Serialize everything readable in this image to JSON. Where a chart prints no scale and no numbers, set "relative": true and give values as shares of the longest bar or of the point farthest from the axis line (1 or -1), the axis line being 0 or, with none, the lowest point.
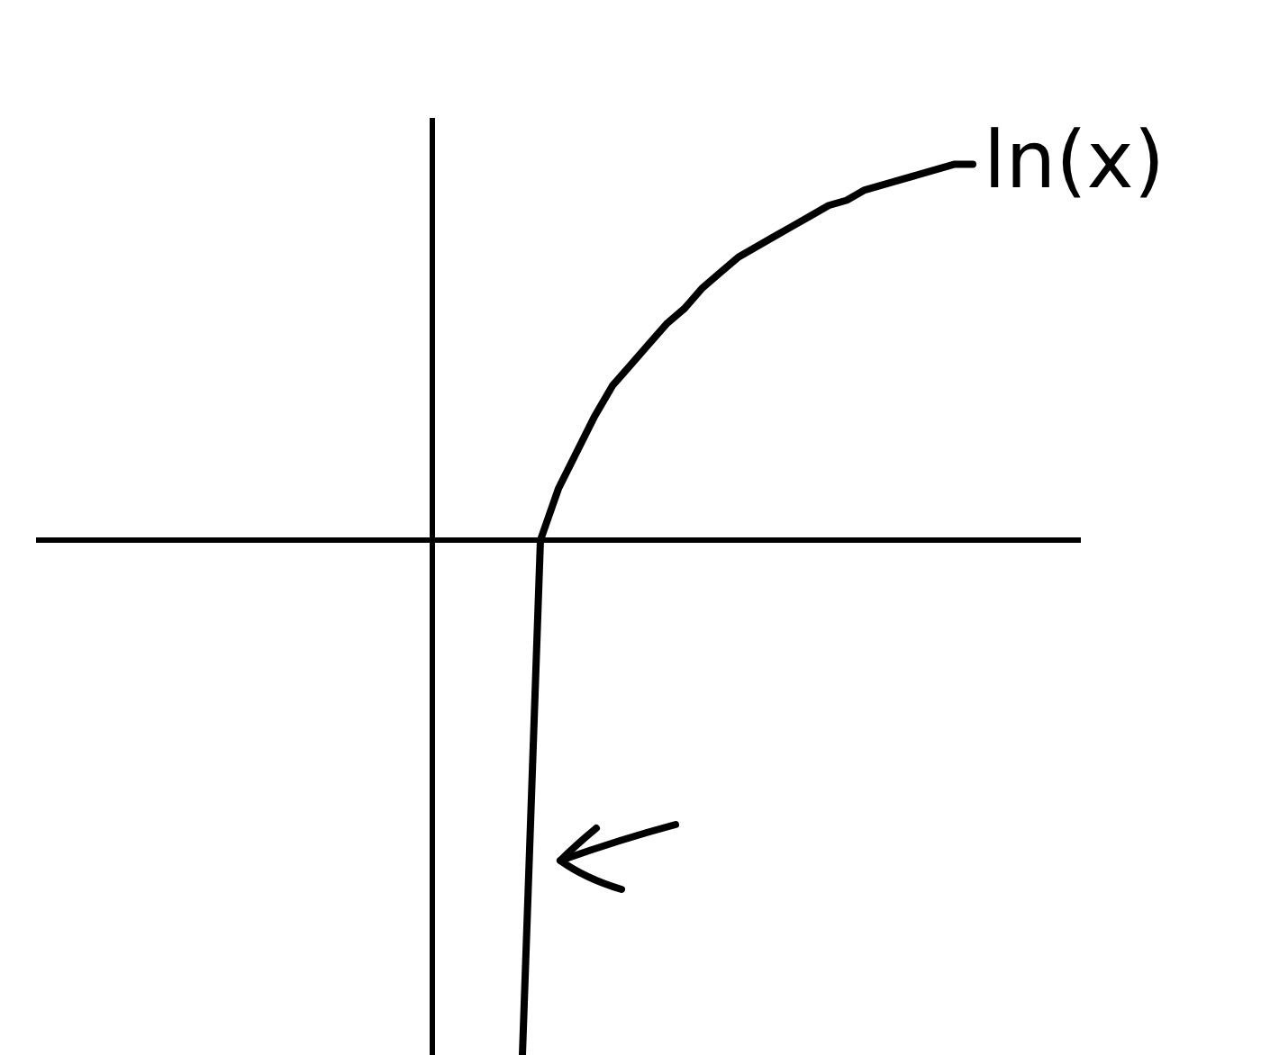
{
  "chart_data": {
    "type": "line",
    "relative": true,
    "categories": [
      null,
      null,
      null,
      null,
      null,
      null,
      null,
      null,
      null,
      null,
      null,
      null,
      null,
      null,
      null,
      null,
      null,
      null,
      null,
      null,
      null,
      null,
      null,
      null,
      null,
      null
    ],
    "series": [
      {
        "name": "ln(x)",
        "color": "#000000",
        "values": [
          -1,
          0.0,
          0.1,
          0.17,
          0.24,
          0.3,
          0.34,
          0.38,
          0.42,
          0.45,
          0.49,
          0.52,
          0.55,
          0.57,
          0.59,
          0.61,
          0.63,
          0.65,
          0.66,
          0.68,
          0.69,
          0.7,
          0.71,
          0.72,
          0.73,
          0.73
        ]
      }
    ]
  }
}
